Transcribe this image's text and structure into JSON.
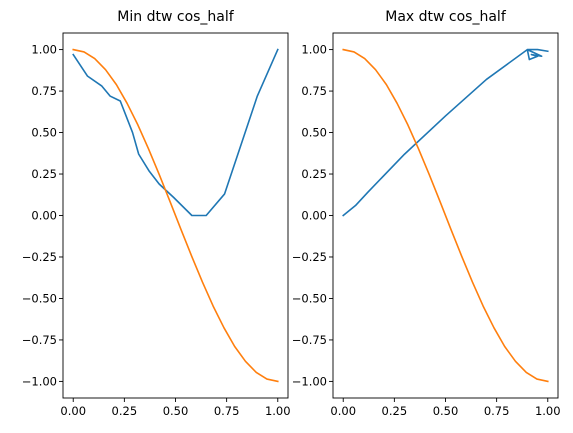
{
  "chart_data": [
    {
      "type": "line",
      "title": "Min dtw cos_half",
      "xlim": [
        -0.05,
        1.05
      ],
      "ylim": [
        -1.1,
        1.1
      ],
      "xticks": [
        0.0,
        0.25,
        0.5,
        0.75,
        1.0
      ],
      "xtick_labels": [
        "0.00",
        "0.25",
        "0.50",
        "0.75",
        "1.00"
      ],
      "yticks": [
        1.0,
        0.75,
        0.5,
        0.25,
        0.0,
        -0.25,
        -0.5,
        -0.75,
        -1.0
      ],
      "ytick_labels": [
        "1.00",
        "0.75",
        "0.50",
        "0.25",
        "0.00",
        "−0.25",
        "−0.50",
        "−0.75",
        "−1.00"
      ],
      "grid": false,
      "series": [
        {
          "color": "#1f77b4",
          "x": [
            0.0,
            0.07,
            0.14,
            0.18,
            0.23,
            0.29,
            0.32,
            0.37,
            0.42,
            0.49,
            0.58,
            0.65,
            0.74,
            0.9,
            1.0
          ],
          "y": [
            0.97,
            0.84,
            0.78,
            0.72,
            0.69,
            0.5,
            0.37,
            0.27,
            0.19,
            0.11,
            0.0,
            0.0,
            0.13,
            0.72,
            1.0
          ]
        },
        {
          "color": "#ff7f0e",
          "x": [
            0.0,
            0.053,
            0.105,
            0.158,
            0.211,
            0.263,
            0.316,
            0.368,
            0.421,
            0.474,
            0.526,
            0.579,
            0.632,
            0.684,
            0.737,
            0.789,
            0.842,
            0.895,
            0.947,
            1.0
          ],
          "y": [
            1.0,
            0.986,
            0.946,
            0.879,
            0.789,
            0.677,
            0.546,
            0.402,
            0.245,
            0.082,
            -0.082,
            -0.245,
            -0.402,
            -0.546,
            -0.677,
            -0.789,
            -0.879,
            -0.946,
            -0.986,
            -1.0
          ]
        }
      ]
    },
    {
      "type": "line",
      "title": "Max dtw cos_half",
      "xlim": [
        -0.05,
        1.05
      ],
      "ylim": [
        -1.1,
        1.1
      ],
      "xticks": [
        0.0,
        0.25,
        0.5,
        0.75,
        1.0
      ],
      "xtick_labels": [
        "0.00",
        "0.25",
        "0.50",
        "0.75",
        "1.00"
      ],
      "yticks": [
        1.0,
        0.75,
        0.5,
        0.25,
        0.0,
        -0.25,
        -0.5,
        -0.75,
        -1.0
      ],
      "ytick_labels": [
        "1.00",
        "0.75",
        "0.50",
        "0.25",
        "0.00",
        "−0.25",
        "−0.50",
        "−0.75",
        "−1.00"
      ],
      "grid": false,
      "series": [
        {
          "color": "#1f77b4",
          "x": [
            0.0,
            0.06,
            0.12,
            0.3,
            0.5,
            0.7,
            0.9,
            0.91,
            0.95,
            0.92,
            0.97,
            0.9,
            0.95,
            1.0
          ],
          "y": [
            0.0,
            0.06,
            0.14,
            0.37,
            0.6,
            0.82,
            1.0,
            0.94,
            0.96,
            0.97,
            0.96,
            1.0,
            1.0,
            0.99
          ]
        },
        {
          "color": "#ff7f0e",
          "x": [
            0.0,
            0.053,
            0.105,
            0.158,
            0.211,
            0.263,
            0.316,
            0.368,
            0.421,
            0.474,
            0.526,
            0.579,
            0.632,
            0.684,
            0.737,
            0.789,
            0.842,
            0.895,
            0.947,
            1.0
          ],
          "y": [
            1.0,
            0.986,
            0.946,
            0.879,
            0.789,
            0.677,
            0.546,
            0.402,
            0.245,
            0.082,
            -0.082,
            -0.245,
            -0.402,
            -0.546,
            -0.677,
            -0.789,
            -0.879,
            -0.946,
            -0.986,
            -1.0
          ]
        }
      ]
    }
  ]
}
